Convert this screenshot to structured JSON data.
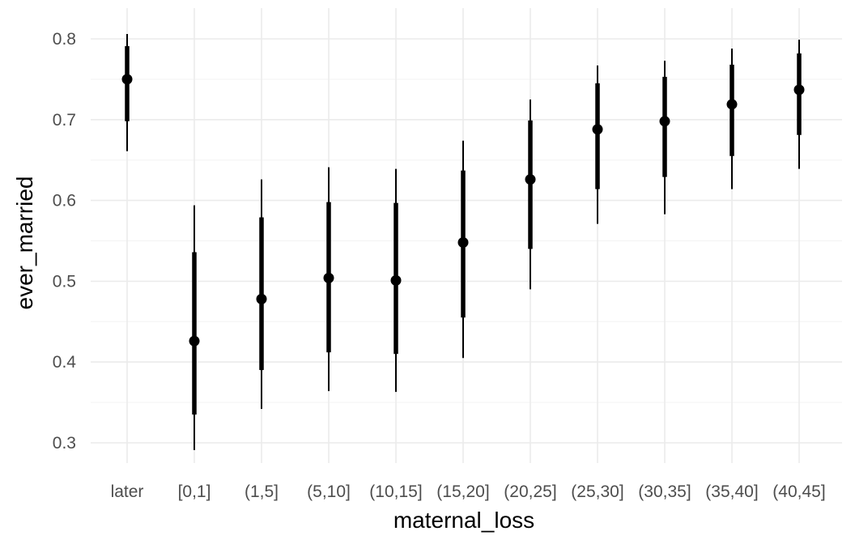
{
  "chart_data": {
    "type": "pointrange",
    "xlabel": "maternal_loss",
    "ylabel": "ever_married",
    "ylim": [
      0.28,
      0.82
    ],
    "y_ticks": [
      0.3,
      0.4,
      0.5,
      0.6,
      0.7,
      0.8
    ],
    "y_tick_labels": [
      "0.3",
      "0.4",
      "0.5",
      "0.6",
      "0.7",
      "0.8"
    ],
    "grid": true,
    "colors": {
      "mark": "#000000",
      "grid": "#ebebeb",
      "tick_text": "#4d4d4d"
    },
    "categories": [
      "later",
      "[0,1]",
      "(1,5]",
      "(5,10]",
      "(10,15]",
      "(15,20]",
      "(20,25]",
      "(25,30]",
      "(30,35]",
      "(35,40]",
      "(40,45]"
    ],
    "points": [
      {
        "category": "later",
        "estimate": 0.75,
        "inner": [
          0.698,
          0.791
        ],
        "outer": [
          0.661,
          0.806
        ]
      },
      {
        "category": "[0,1]",
        "estimate": 0.426,
        "inner": [
          0.335,
          0.536
        ],
        "outer": [
          0.291,
          0.594
        ]
      },
      {
        "category": "(1,5]",
        "estimate": 0.478,
        "inner": [
          0.39,
          0.579
        ],
        "outer": [
          0.342,
          0.626
        ]
      },
      {
        "category": "(5,10]",
        "estimate": 0.504,
        "inner": [
          0.412,
          0.598
        ],
        "outer": [
          0.364,
          0.641
        ]
      },
      {
        "category": "(10,15]",
        "estimate": 0.501,
        "inner": [
          0.41,
          0.597
        ],
        "outer": [
          0.363,
          0.639
        ]
      },
      {
        "category": "(15,20]",
        "estimate": 0.548,
        "inner": [
          0.455,
          0.637
        ],
        "outer": [
          0.405,
          0.674
        ]
      },
      {
        "category": "(20,25]",
        "estimate": 0.626,
        "inner": [
          0.54,
          0.699
        ],
        "outer": [
          0.49,
          0.725
        ]
      },
      {
        "category": "(25,30]",
        "estimate": 0.688,
        "inner": [
          0.614,
          0.745
        ],
        "outer": [
          0.571,
          0.767
        ]
      },
      {
        "category": "(30,35]",
        "estimate": 0.698,
        "inner": [
          0.629,
          0.753
        ],
        "outer": [
          0.583,
          0.773
        ]
      },
      {
        "category": "(35,40]",
        "estimate": 0.719,
        "inner": [
          0.655,
          0.768
        ],
        "outer": [
          0.614,
          0.788
        ]
      },
      {
        "category": "(40,45]",
        "estimate": 0.737,
        "inner": [
          0.681,
          0.782
        ],
        "outer": [
          0.639,
          0.799
        ]
      }
    ]
  }
}
